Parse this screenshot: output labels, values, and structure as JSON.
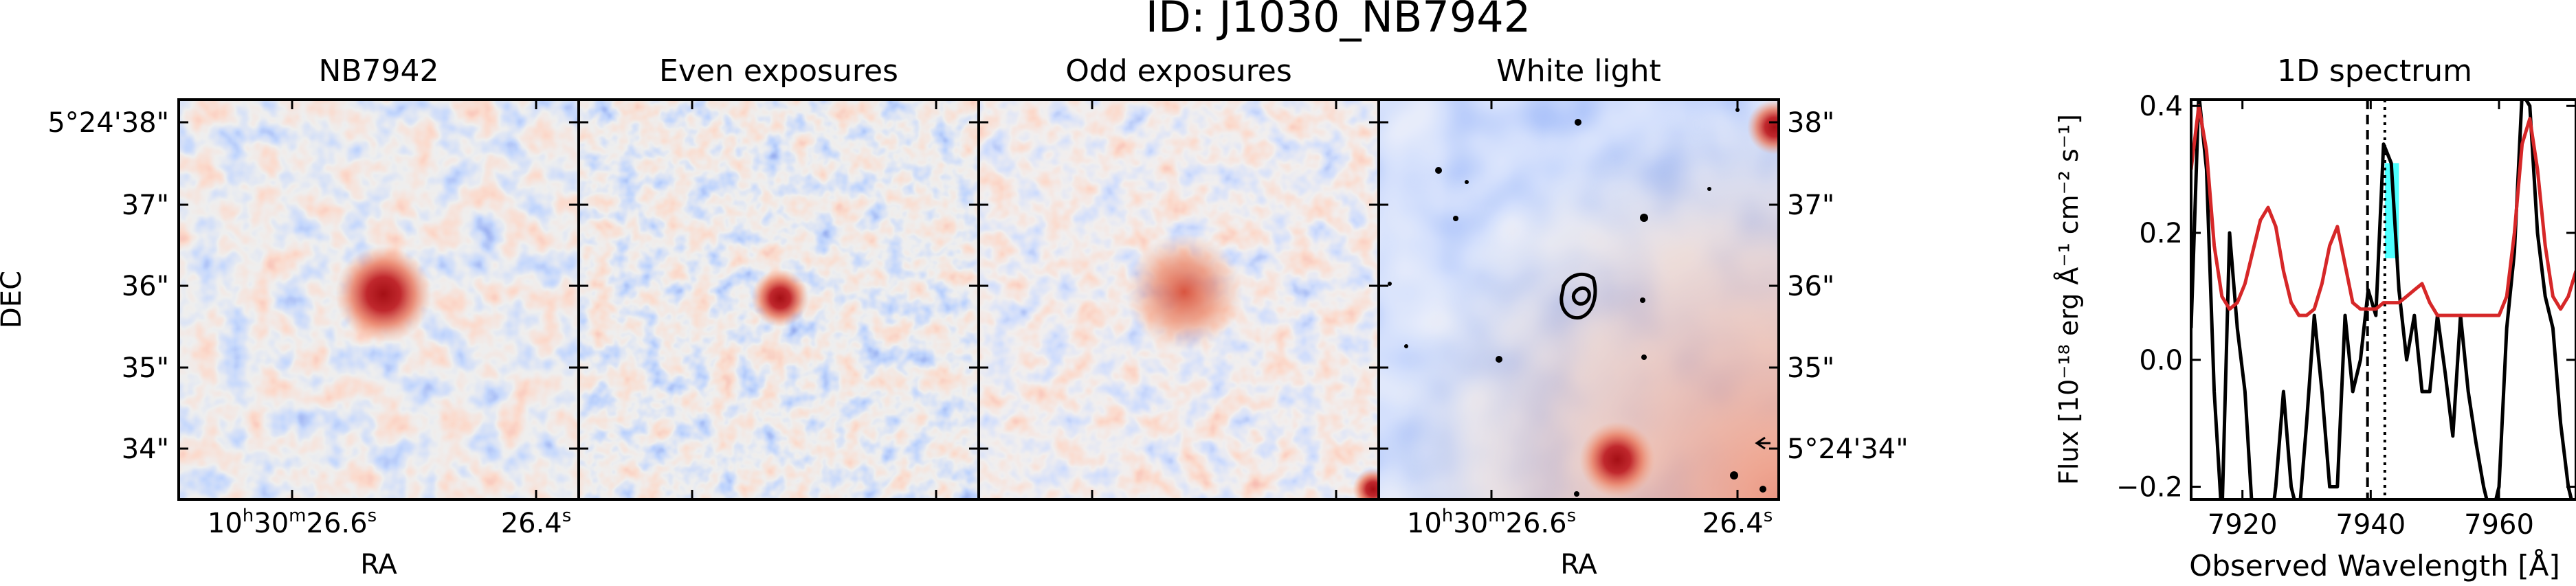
{
  "figure_title": "ID: J1030_NB7942",
  "panels": [
    {
      "title": "NB7942"
    },
    {
      "title": "Even exposures"
    },
    {
      "title": "Odd exposures"
    },
    {
      "title": "White light"
    }
  ],
  "dec_label": "DEC",
  "ra_label": "RA",
  "dec_ticks_left": [
    "5°24'38\"",
    "37\"",
    "36\"",
    "35\"",
    "34\""
  ],
  "dec_ticks_right": [
    "38\"",
    "37\"",
    "36\"",
    "35\"",
    "5°24'34\""
  ],
  "ra_ticks": {
    "major_text": "10",
    "h": "h",
    "min": "30",
    "m": "m",
    "sec": "26.6",
    "s": "s",
    "right_sec": "26.4"
  },
  "colors": {
    "map_blue": "#3b4cc0",
    "map_red": "#b40426",
    "neutral": "#dddddd",
    "spectrum_line": "#000000",
    "noise_line": "#d62728",
    "highlight_fill": "#4dffff"
  },
  "chart_data": {
    "type": "line",
    "title": "1D spectrum",
    "xlabel": "Observed Wavelength [Å]",
    "ylabel": "Flux [10⁻¹⁸ erg Å⁻¹ cm⁻² s⁻¹]",
    "xlim": [
      7912,
      7972
    ],
    "ylim": [
      -0.22,
      0.41
    ],
    "xticks": [
      7920,
      7940,
      7960
    ],
    "yticks": [
      -0.2,
      0.0,
      0.2,
      0.4
    ],
    "ytick_labels": [
      "−0.2",
      "0.0",
      "0.2",
      "0.4"
    ],
    "vlines": [
      {
        "x": 7939.5,
        "style": "dashed"
      },
      {
        "x": 7942.2,
        "style": "dotted"
      }
    ],
    "highlight_range": [
      7942.2,
      7944.4
    ],
    "series": [
      {
        "style": "flux",
        "x": [
          7912.0,
          7913.2,
          7914.4,
          7915.6,
          7916.8,
          7918.0,
          7919.2,
          7920.4,
          7921.6,
          7922.8,
          7924.0,
          7925.2,
          7926.4,
          7927.6,
          7928.8,
          7930.0,
          7931.2,
          7932.4,
          7933.6,
          7934.8,
          7936.0,
          7937.2,
          7938.4,
          7939.6,
          7940.8,
          7942.0,
          7943.2,
          7944.4,
          7945.6,
          7946.8,
          7948.0,
          7949.2,
          7950.4,
          7951.6,
          7952.8,
          7954.0,
          7955.2,
          7956.4,
          7957.6,
          7958.8,
          7960.0,
          7961.2,
          7962.4,
          7963.6,
          7964.8,
          7966.0,
          7967.2,
          7968.4,
          7969.6,
          7970.8,
          7972.0
        ],
        "y": [
          0.05,
          0.42,
          0.3,
          -0.05,
          -0.25,
          0.2,
          0.05,
          -0.05,
          -0.25,
          -0.25,
          -0.3,
          -0.2,
          -0.05,
          -0.2,
          -0.25,
          -0.1,
          0.07,
          -0.05,
          -0.2,
          -0.2,
          0.07,
          -0.05,
          0.0,
          0.11,
          0.07,
          0.34,
          0.31,
          0.11,
          0.0,
          0.07,
          -0.05,
          -0.05,
          0.07,
          -0.02,
          -0.12,
          0.07,
          -0.05,
          -0.13,
          -0.2,
          -0.25,
          -0.2,
          0.05,
          0.17,
          0.42,
          0.4,
          0.2,
          0.1,
          0.05,
          -0.1,
          -0.2,
          -0.25
        ]
      },
      {
        "style": "noise",
        "x": [
          7912.0,
          7913.2,
          7914.4,
          7915.6,
          7916.8,
          7918.0,
          7919.2,
          7920.4,
          7921.6,
          7922.8,
          7924.0,
          7925.2,
          7926.4,
          7927.6,
          7928.8,
          7930.0,
          7931.2,
          7932.4,
          7933.6,
          7934.8,
          7936.0,
          7937.2,
          7938.4,
          7939.6,
          7940.8,
          7942.0,
          7943.2,
          7944.4,
          7945.6,
          7946.8,
          7948.0,
          7949.2,
          7950.4,
          7951.6,
          7952.8,
          7954.0,
          7955.2,
          7956.4,
          7957.6,
          7958.8,
          7960.0,
          7961.2,
          7962.4,
          7963.6,
          7964.8,
          7966.0,
          7967.2,
          7968.4,
          7969.6,
          7970.8,
          7972.0
        ],
        "y": [
          0.3,
          0.4,
          0.33,
          0.18,
          0.1,
          0.08,
          0.09,
          0.12,
          0.17,
          0.22,
          0.24,
          0.21,
          0.14,
          0.09,
          0.07,
          0.07,
          0.08,
          0.12,
          0.18,
          0.21,
          0.15,
          0.09,
          0.08,
          0.08,
          0.08,
          0.09,
          0.09,
          0.09,
          0.1,
          0.11,
          0.12,
          0.09,
          0.07,
          0.07,
          0.07,
          0.07,
          0.07,
          0.07,
          0.07,
          0.07,
          0.07,
          0.1,
          0.2,
          0.34,
          0.38,
          0.3,
          0.18,
          0.1,
          0.08,
          0.1,
          0.14
        ]
      }
    ]
  }
}
